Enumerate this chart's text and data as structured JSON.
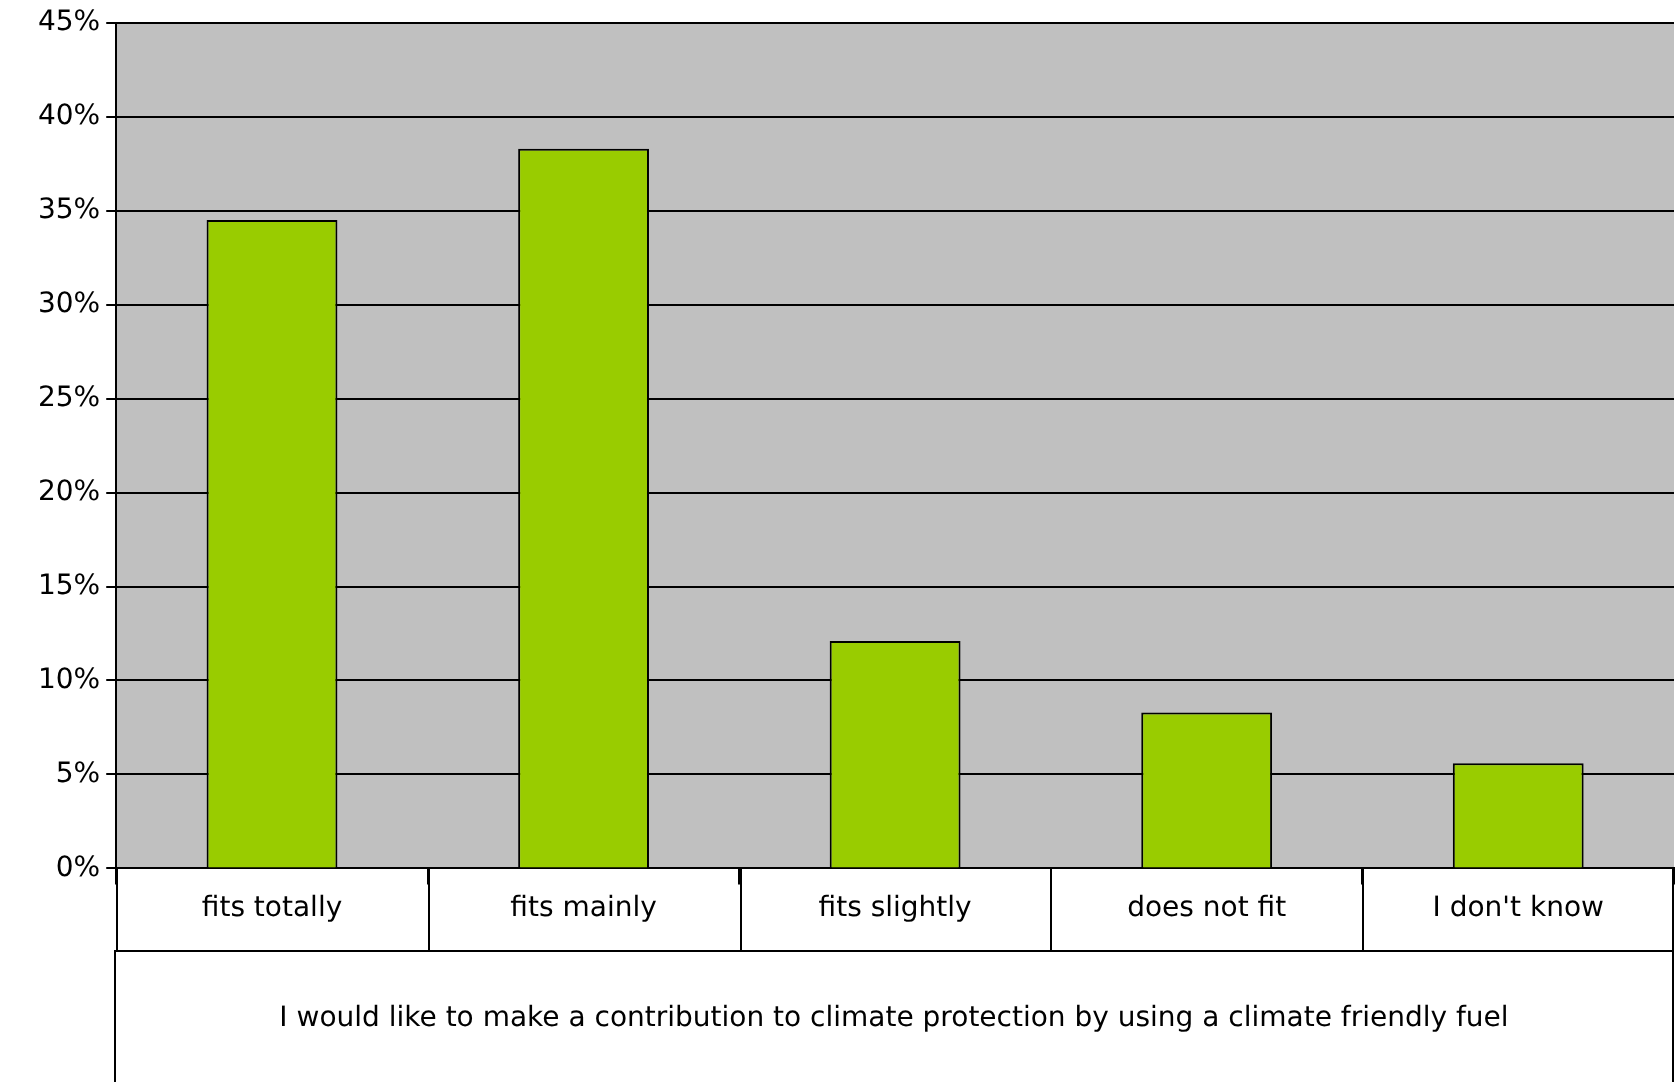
{
  "chart_data": {
    "type": "bar",
    "xlabel": "I would like to make a contribution to climate protection by using a climate friendly fuel",
    "categories": [
      "fits totally",
      "fits mainly",
      "fits slightly",
      "does not fit",
      "I don't know"
    ],
    "values": [
      34.5,
      38.3,
      12.1,
      8.3,
      5.6
    ],
    "color": "#99cc00",
    "ylim": [
      0,
      45
    ],
    "yticks": [
      {
        "value": 0,
        "label": "0%"
      },
      {
        "value": 5,
        "label": "5%"
      },
      {
        "value": 10,
        "label": "10%"
      },
      {
        "value": 15,
        "label": "15%"
      },
      {
        "value": 20,
        "label": "20%"
      },
      {
        "value": 25,
        "label": "25%"
      },
      {
        "value": 30,
        "label": "30%"
      },
      {
        "value": 35,
        "label": "35%"
      },
      {
        "value": 40,
        "label": "40%"
      },
      {
        "value": 45,
        "label": "45%"
      }
    ],
    "grid": "y",
    "legend": false
  }
}
